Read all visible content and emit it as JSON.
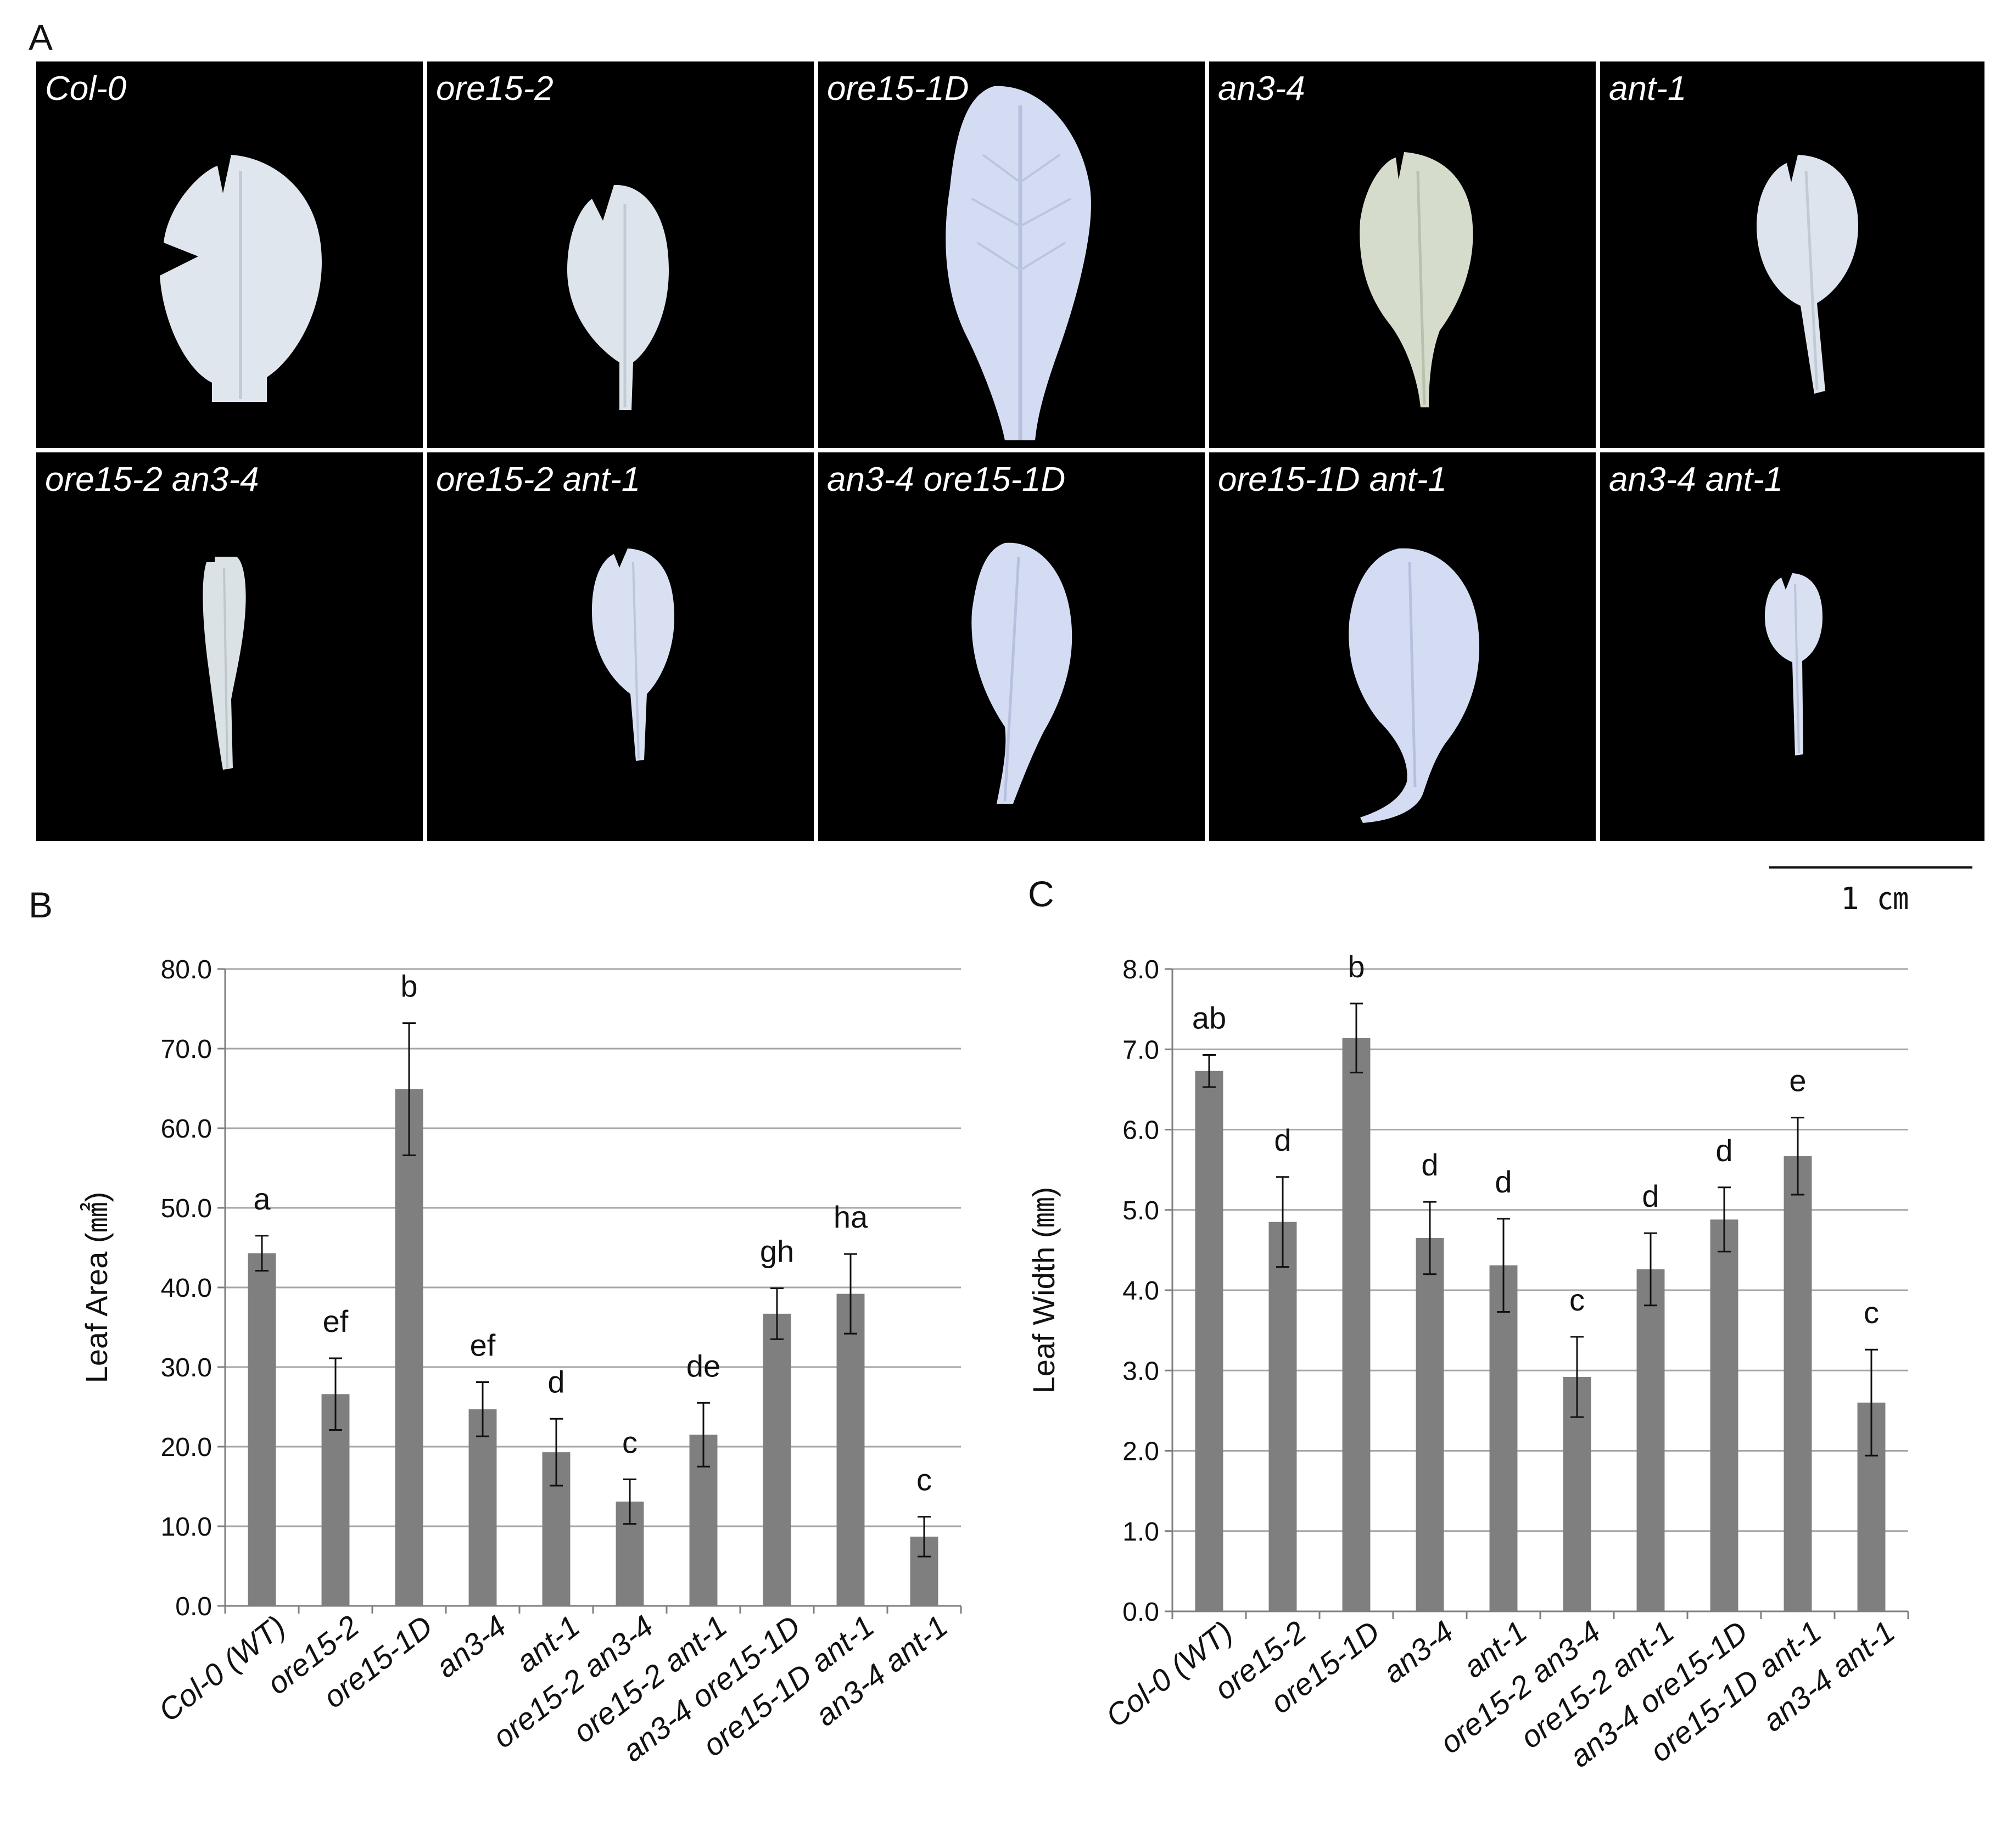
{
  "panels": {
    "a": "A",
    "b": "B",
    "c": "C"
  },
  "photos": [
    {
      "label": "Col-0",
      "leaf": "leaf-col0"
    },
    {
      "label": "ore15-2",
      "leaf": "leaf-ore152"
    },
    {
      "label": "ore15-1D",
      "leaf": "leaf-ore151d"
    },
    {
      "label": "an3-4",
      "leaf": "leaf-an34"
    },
    {
      "label": "ant-1",
      "leaf": "leaf-ant1"
    },
    {
      "label": "ore15-2 an3-4",
      "leaf": "leaf-ore152-an34"
    },
    {
      "label": "ore15-2 ant-1",
      "leaf": "leaf-ore152-ant1"
    },
    {
      "label": "an3-4 ore15-1D",
      "leaf": "leaf-an34-ore151d"
    },
    {
      "label": "ore15-1D ant-1",
      "leaf": "leaf-ore151d-ant1"
    },
    {
      "label": "an3-4 ant-1",
      "leaf": "leaf-an34-ant1"
    }
  ],
  "scale_bar": {
    "label": "1 ㎝"
  },
  "colors": {
    "bar": "#7f7f7f",
    "grid": "#a6a6a6",
    "leaf": "#dfe6ee",
    "leaf_blue": "#d4dcf4",
    "photo_bg": "#000000"
  },
  "chart_data": [
    {
      "type": "bar",
      "panel": "B",
      "ylabel": "Leaf Area (㎟)",
      "ylim": [
        0,
        80
      ],
      "yticks": [
        0,
        10,
        20,
        30,
        40,
        50,
        60,
        70,
        80
      ],
      "ytick_labels": [
        "0.0",
        "10.0",
        "20.0",
        "30.0",
        "40.0",
        "50.0",
        "60.0",
        "70.0",
        "80.0"
      ],
      "grid": true,
      "categories": [
        "Col-0 (WT)",
        "ore15-2",
        "ore15-1D",
        "an3-4",
        "ant-1",
        "ore15-2 an3-4",
        "ore15-2 ant-1",
        "an3-4 ore15-1D",
        "ore15-1D ant-1",
        "an3-4 ant-1"
      ],
      "values": [
        44.3,
        26.6,
        64.9,
        24.7,
        19.3,
        13.1,
        21.5,
        36.7,
        39.2,
        8.7
      ],
      "errors": [
        2.2,
        4.5,
        8.3,
        3.4,
        4.2,
        2.8,
        4.0,
        3.2,
        5.0,
        2.5
      ],
      "letters": [
        "a",
        "ef",
        "b",
        "ef",
        "d",
        "c",
        "de",
        "gh",
        "ha",
        "c"
      ]
    },
    {
      "type": "bar",
      "panel": "C",
      "ylabel": "Leaf Width (㎜)",
      "ylim": [
        0,
        8
      ],
      "yticks": [
        0,
        1,
        2,
        3,
        4,
        5,
        6,
        7,
        8
      ],
      "ytick_labels": [
        "0.0",
        "1.0",
        "2.0",
        "3.0",
        "4.0",
        "5.0",
        "6.0",
        "7.0",
        "8.0"
      ],
      "grid": true,
      "categories": [
        "Col-0 (WT)",
        "ore15-2",
        "ore15-1D",
        "an3-4",
        "ant-1",
        "ore15-2 an3-4",
        "ore15-2 ant-1",
        "an3-4 ore15-1D",
        "ore15-1D ant-1",
        "an3-4 ant-1"
      ],
      "values": [
        6.73,
        4.85,
        7.14,
        4.65,
        4.31,
        2.92,
        4.26,
        4.88,
        5.67,
        2.6
      ],
      "errors": [
        0.2,
        0.56,
        0.43,
        0.45,
        0.58,
        0.5,
        0.45,
        0.4,
        0.48,
        0.66
      ],
      "letters": [
        "ab",
        "d",
        "b",
        "d",
        "d",
        "c",
        "d",
        "d",
        "e",
        "c"
      ]
    }
  ]
}
